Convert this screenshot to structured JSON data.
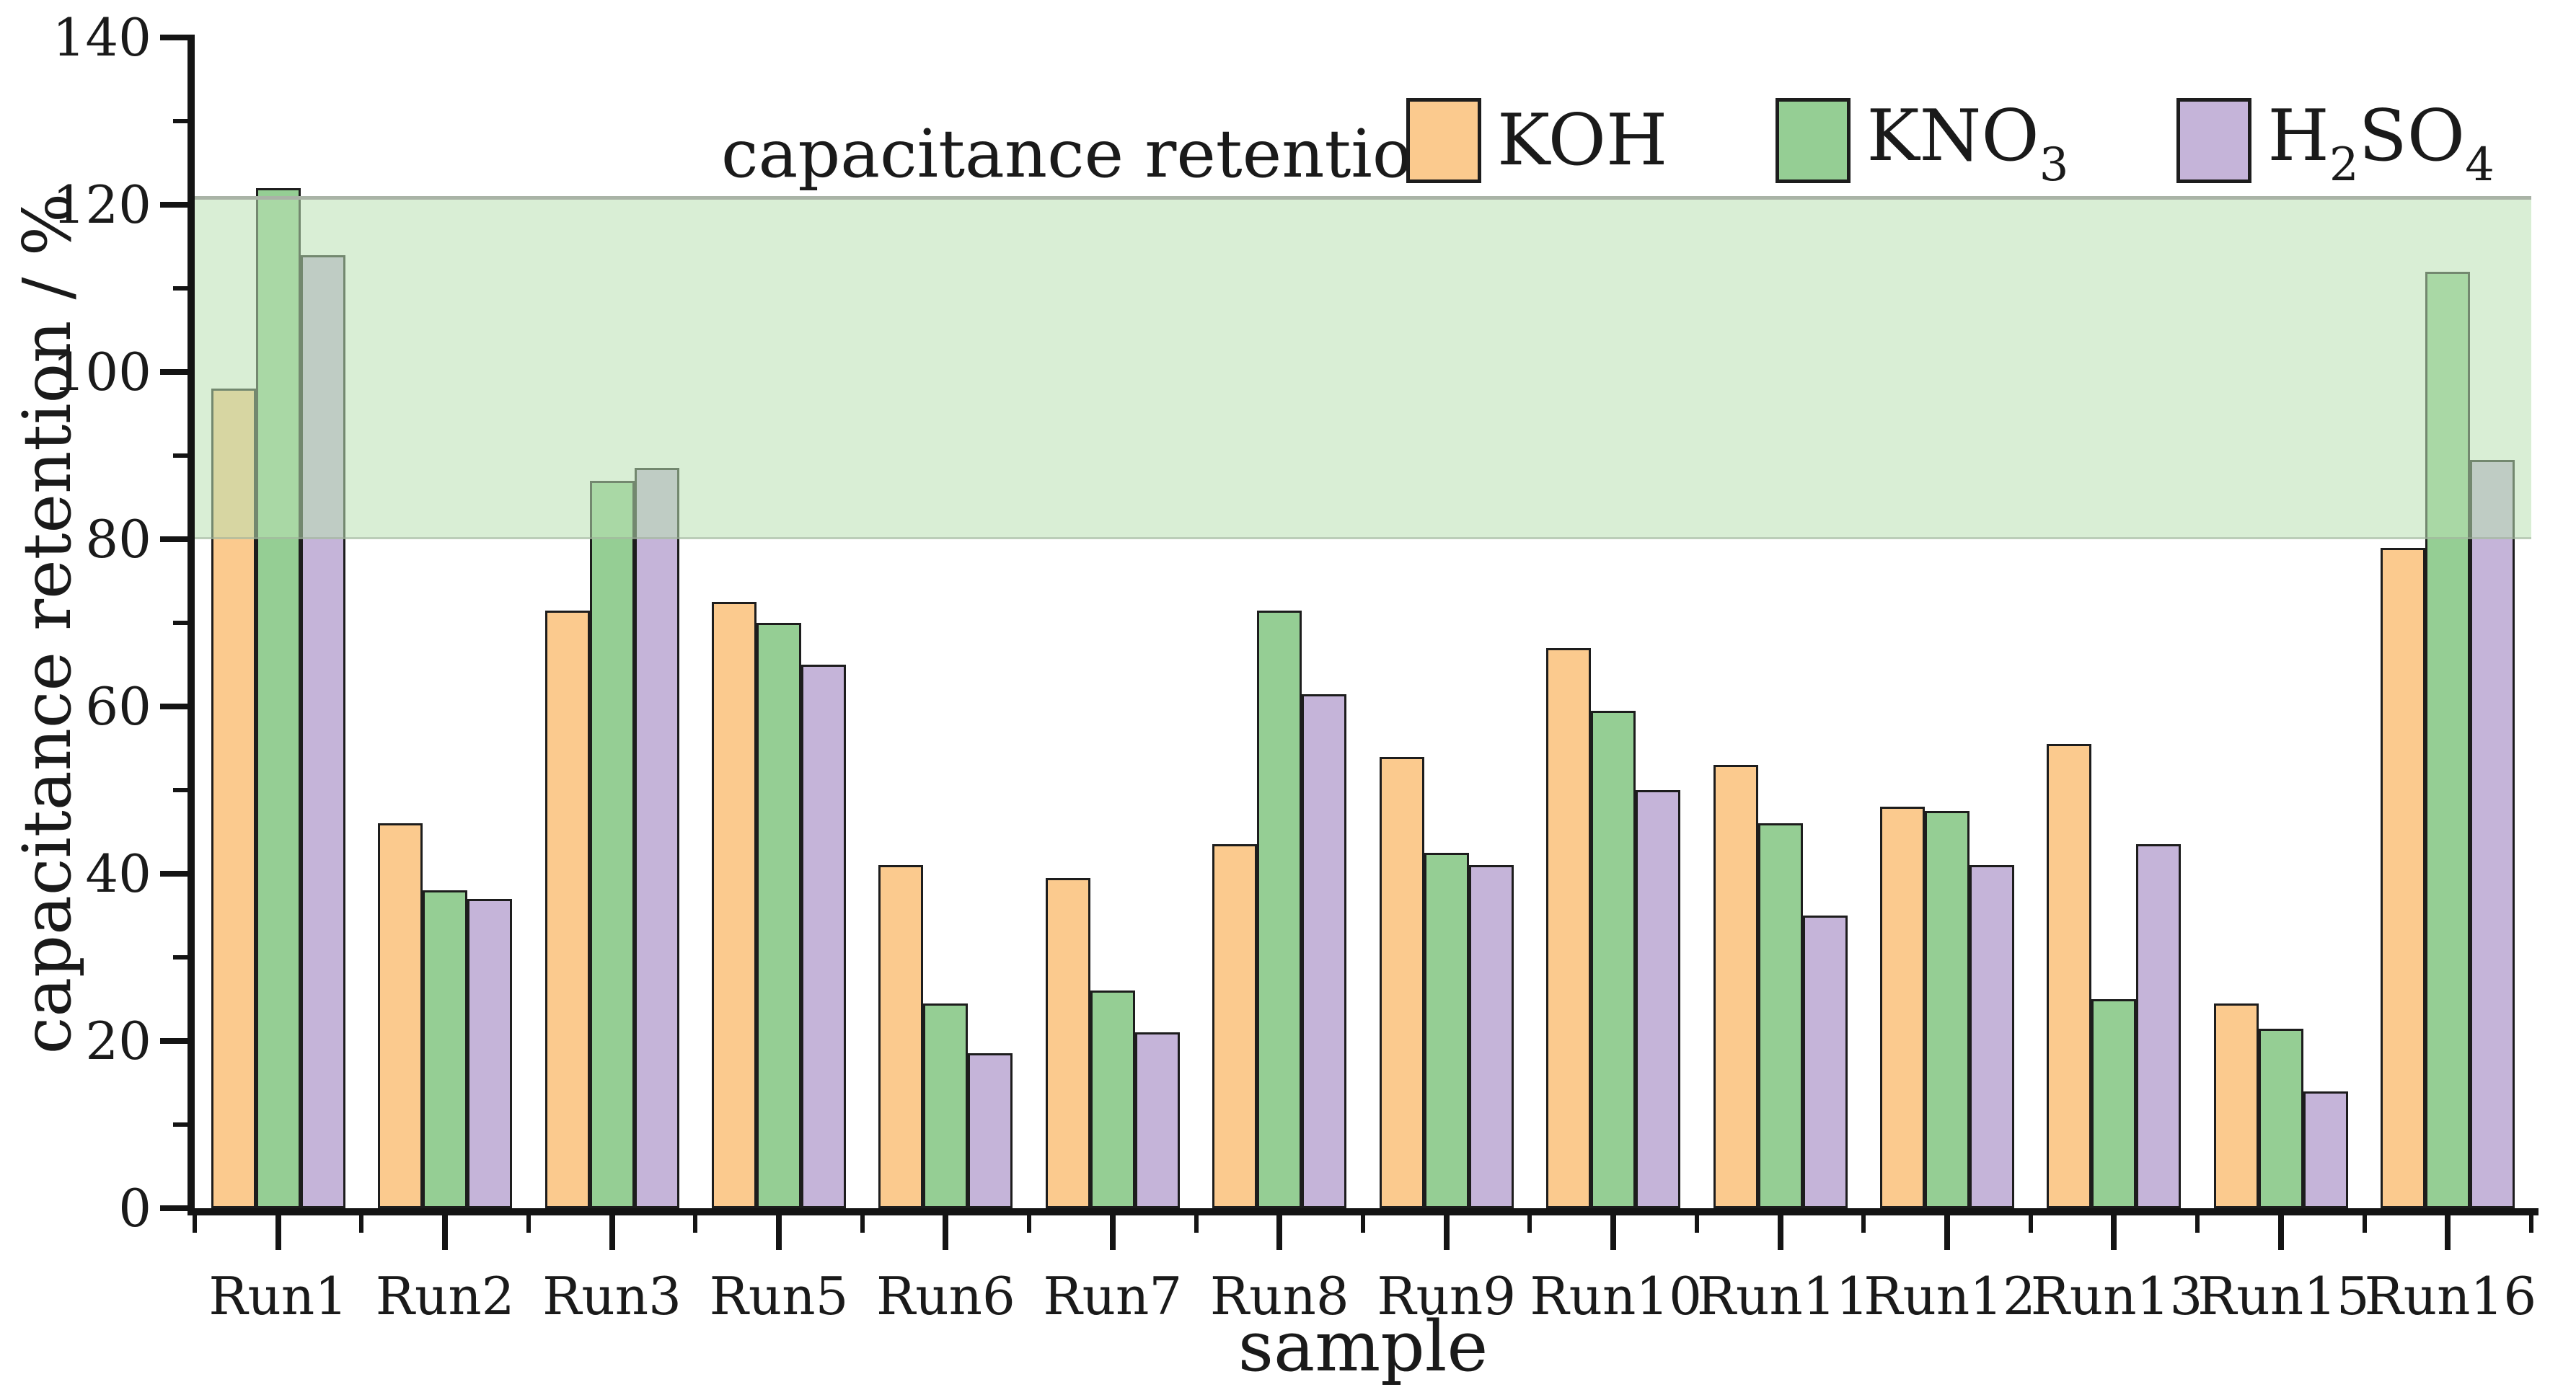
{
  "legend": {
    "items": [
      {
        "id": "koh",
        "name": "KOH",
        "parts": [
          [
            "KOH",
            false
          ]
        ]
      },
      {
        "id": "kno3",
        "name": "KNO3",
        "parts": [
          [
            "KNO",
            false
          ],
          [
            "3",
            true
          ]
        ]
      },
      {
        "id": "h2so4",
        "name": "H2SO4",
        "parts": [
          [
            "H",
            false
          ],
          [
            "2",
            true
          ],
          [
            "SO",
            false
          ],
          [
            "4",
            true
          ]
        ]
      }
    ]
  },
  "chart_data": {
    "type": "bar",
    "title": "capacitance retention",
    "xlabel": "sample",
    "ylabel": "capacitance retention / %",
    "categories": [
      "Run1",
      "Run2",
      "Run3",
      "Run5",
      "Run6",
      "Run7",
      "Run8",
      "Run9",
      "Run10",
      "Run11",
      "Run12",
      "Run13",
      "Run15",
      "Run16"
    ],
    "series": [
      {
        "id": "koh",
        "name": "KOH",
        "color": "#FBCA8E",
        "values": [
          98,
          46,
          71.5,
          72.5,
          41,
          39.5,
          43.5,
          54,
          67,
          53,
          48,
          55.5,
          24.5,
          79
        ]
      },
      {
        "id": "kno3",
        "name": "KNO3",
        "color": "#95CE94",
        "values": [
          122,
          38,
          87,
          70,
          24.5,
          26,
          71.5,
          42.5,
          59.5,
          46,
          47.5,
          25,
          21.5,
          112
        ]
      },
      {
        "id": "h2so4",
        "name": "H2SO4",
        "color": "#C5B4D9",
        "values": [
          114,
          37,
          88.5,
          65,
          18.5,
          21,
          61.5,
          41,
          50,
          35,
          41,
          43.5,
          14,
          89.5
        ]
      }
    ],
    "ylim": [
      0,
      140
    ],
    "yticks": [
      0,
      20,
      40,
      60,
      80,
      100,
      120,
      140
    ],
    "ytick_minor_step": 10,
    "grid": false,
    "legend_position": "top-right",
    "band": {
      "from": 80,
      "to": 121,
      "fill": "rgba(186,224,178,0.55)",
      "edge_color": "#A9B3A6"
    }
  },
  "colors": {
    "background": "#FFFFFF",
    "axis": "#141414",
    "text": "#1A1A1A",
    "bar_outline": "#1D1D1D"
  }
}
